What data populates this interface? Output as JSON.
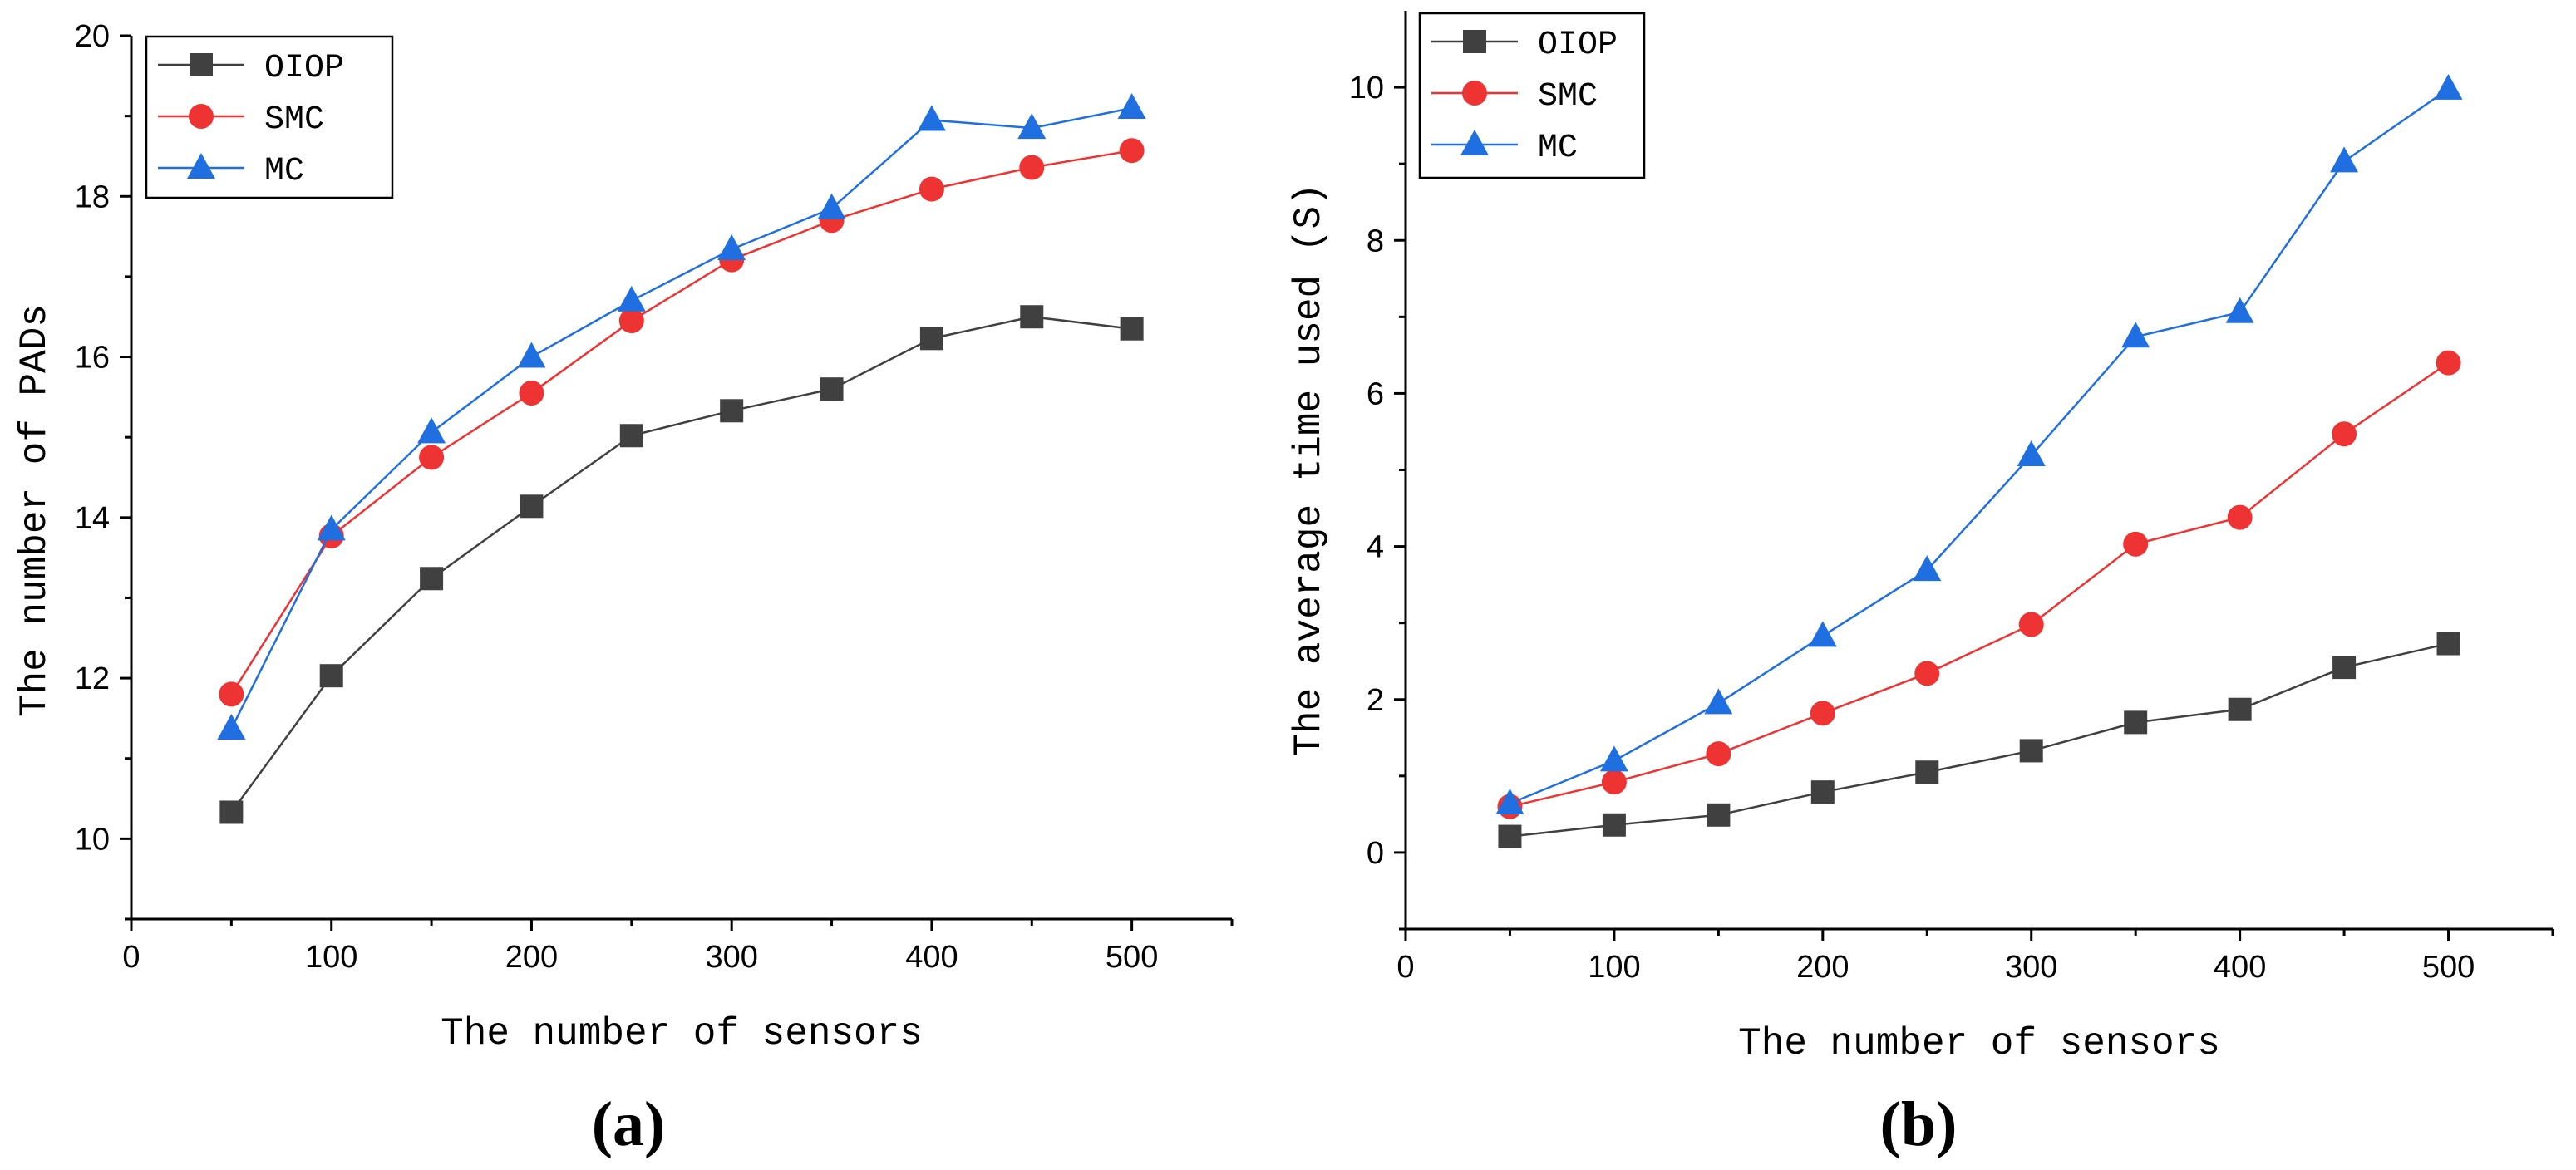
{
  "chart_data": [
    {
      "type": "line",
      "panel_label": "(a)",
      "xlabel": "The number of sensors",
      "ylabel": "The number of PADs",
      "xlim": [
        0,
        550
      ],
      "ylim": [
        9,
        20
      ],
      "xticks": [
        0,
        100,
        200,
        300,
        400,
        500
      ],
      "yticks": [
        10,
        12,
        14,
        16,
        18,
        20
      ],
      "grid": false,
      "legend_position": "top-left",
      "x": [
        50,
        100,
        150,
        200,
        250,
        300,
        350,
        400,
        450,
        500
      ],
      "series": [
        {
          "name": "OIOP",
          "color": "#404040",
          "marker": "square",
          "values": [
            10.33,
            12.03,
            13.24,
            14.14,
            15.02,
            15.33,
            15.6,
            16.23,
            16.5,
            16.35
          ]
        },
        {
          "name": "SMC",
          "color": "#ee3333",
          "marker": "circle",
          "values": [
            11.8,
            13.77,
            14.75,
            15.55,
            16.45,
            17.21,
            17.7,
            18.09,
            18.36,
            18.57
          ]
        },
        {
          "name": "MC",
          "color": "#1f6fe0",
          "marker": "triangle",
          "values": [
            11.37,
            13.85,
            15.06,
            16.0,
            16.7,
            17.34,
            17.85,
            18.95,
            18.85,
            19.1
          ]
        }
      ]
    },
    {
      "type": "line",
      "panel_label": "(b)",
      "xlabel": "The number of sensors",
      "ylabel": "The average time used (S)",
      "xlim": [
        0,
        550
      ],
      "ylim": [
        -1,
        11
      ],
      "xticks": [
        0,
        100,
        200,
        300,
        400,
        500
      ],
      "yticks": [
        0,
        2,
        4,
        6,
        8,
        10
      ],
      "grid": false,
      "legend_position": "top-left",
      "x": [
        50,
        100,
        150,
        200,
        250,
        300,
        350,
        400,
        450,
        500
      ],
      "series": [
        {
          "name": "OIOP",
          "color": "#404040",
          "marker": "square",
          "values": [
            0.21,
            0.36,
            0.49,
            0.79,
            1.05,
            1.33,
            1.7,
            1.87,
            2.42,
            2.73
          ]
        },
        {
          "name": "SMC",
          "color": "#ee3333",
          "marker": "circle",
          "values": [
            0.6,
            0.92,
            1.29,
            1.82,
            2.34,
            2.98,
            4.03,
            4.38,
            5.47,
            6.4
          ]
        },
        {
          "name": "MC",
          "color": "#1f6fe0",
          "marker": "triangle",
          "values": [
            0.64,
            1.2,
            1.95,
            2.83,
            3.69,
            5.19,
            6.74,
            7.06,
            9.03,
            9.98
          ]
        }
      ]
    }
  ]
}
